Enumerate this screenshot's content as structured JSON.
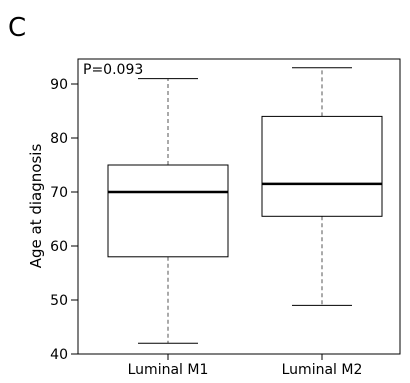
{
  "panel_label": "C",
  "chart_data": {
    "type": "boxplot",
    "ylabel": "Age at diagnosis",
    "xlabel": "",
    "ylim": [
      40,
      93
    ],
    "yticks": [
      40,
      50,
      60,
      70,
      80,
      90
    ],
    "categories": [
      "Luminal M1",
      "Luminal M2"
    ],
    "annotation": "P=0.093",
    "boxes": [
      {
        "category": "Luminal M1",
        "min": 42,
        "q1": 58,
        "median": 70,
        "q3": 75,
        "max": 91
      },
      {
        "category": "Luminal M2",
        "min": 49,
        "q1": 65.5,
        "median": 71.5,
        "q3": 84,
        "max": 93
      }
    ],
    "grid": false,
    "legend": "none"
  }
}
